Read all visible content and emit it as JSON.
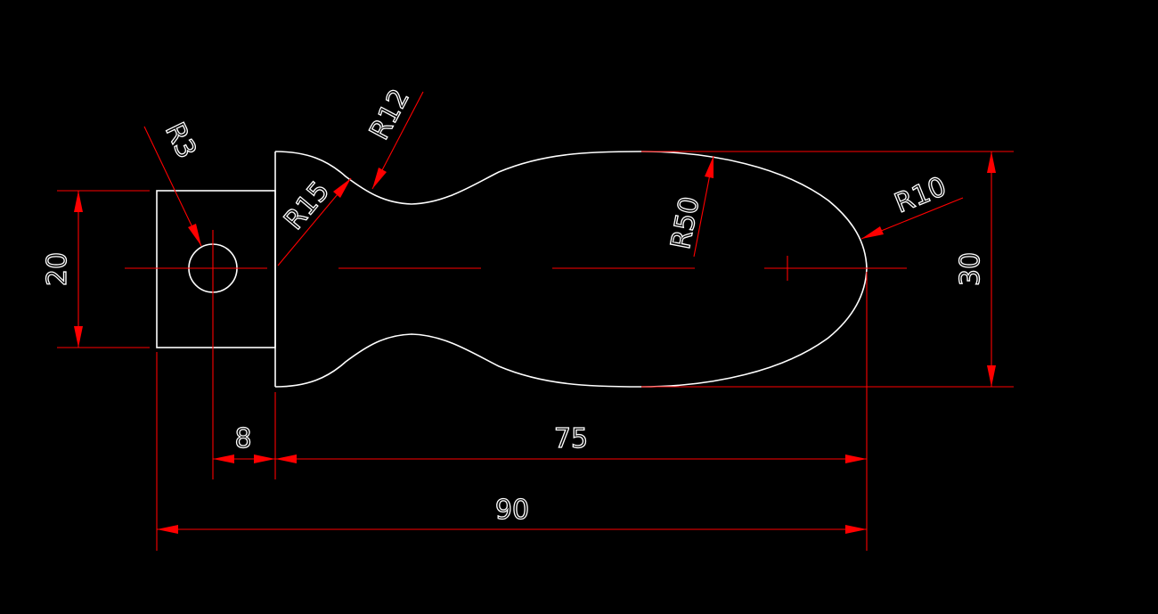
{
  "drawing": {
    "background_color": "#000000",
    "geometry_color": "#ffffff",
    "dimension_color": "#ff0000",
    "dimensions": {
      "d_20": "20",
      "d_30": "30",
      "d_8": "8",
      "d_75": "75",
      "d_90": "90",
      "r_3": "R3",
      "r_12": "R12",
      "r_15": "R15",
      "r_50": "R50",
      "r_10": "R10"
    }
  }
}
